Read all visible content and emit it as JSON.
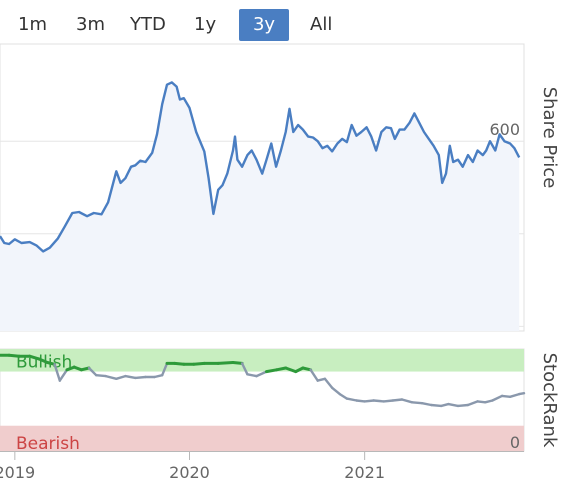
{
  "range_selector": {
    "buttons": [
      {
        "label": "1m",
        "active": false
      },
      {
        "label": "3m",
        "active": false
      },
      {
        "label": "YTD",
        "active": false
      },
      {
        "label": "1y",
        "active": false
      },
      {
        "label": "3y",
        "active": true
      },
      {
        "label": "All",
        "active": false
      }
    ]
  },
  "colors": {
    "price_line": "#4a7ec2",
    "price_area": "#f2f5fb",
    "bullish_zone": "#c8eec0",
    "bearish_zone": "#f0cdcd",
    "rank_bullish_line": "#2e9a3a",
    "rank_line": "#8a98ac",
    "bullish_text": "#2e9a3a",
    "bearish_text": "#cc4444"
  },
  "chart_data": [
    {
      "type": "area",
      "name": "share-price",
      "ylabel": "Share Price",
      "ylim": [
        190,
        810
      ],
      "yticks": [
        "200",
        "400",
        "600"
      ],
      "xlim": [
        "2018-12-01",
        "2021-11-30"
      ],
      "points": [
        [
          "2018-12-01",
          395
        ],
        [
          "2018-12-10",
          380
        ],
        [
          "2018-12-20",
          378
        ],
        [
          "2019-01-01",
          388
        ],
        [
          "2019-01-15",
          380
        ],
        [
          "2019-02-01",
          382
        ],
        [
          "2019-02-15",
          375
        ],
        [
          "2019-03-01",
          362
        ],
        [
          "2019-03-15",
          370
        ],
        [
          "2019-04-01",
          390
        ],
        [
          "2019-04-15",
          415
        ],
        [
          "2019-05-01",
          445
        ],
        [
          "2019-05-15",
          447
        ],
        [
          "2019-06-01",
          438
        ],
        [
          "2019-06-15",
          445
        ],
        [
          "2019-07-01",
          442
        ],
        [
          "2019-07-15",
          468
        ],
        [
          "2019-08-01",
          535
        ],
        [
          "2019-08-10",
          510
        ],
        [
          "2019-08-20",
          520
        ],
        [
          "2019-09-01",
          545
        ],
        [
          "2019-09-10",
          548
        ],
        [
          "2019-09-20",
          558
        ],
        [
          "2019-10-01",
          555
        ],
        [
          "2019-10-15",
          575
        ],
        [
          "2019-10-25",
          615
        ],
        [
          "2019-11-05",
          680
        ],
        [
          "2019-11-15",
          722
        ],
        [
          "2019-11-25",
          727
        ],
        [
          "2019-12-05",
          718
        ],
        [
          "2019-12-12",
          690
        ],
        [
          "2019-12-20",
          693
        ],
        [
          "2020-01-01",
          672
        ],
        [
          "2020-01-15",
          620
        ],
        [
          "2020-02-01",
          578
        ],
        [
          "2020-02-10",
          520
        ],
        [
          "2020-02-20",
          443
        ],
        [
          "2020-03-01",
          495
        ],
        [
          "2020-03-10",
          505
        ],
        [
          "2020-03-20",
          530
        ],
        [
          "2020-04-01",
          580
        ],
        [
          "2020-04-05",
          610
        ],
        [
          "2020-04-10",
          560
        ],
        [
          "2020-04-20",
          545
        ],
        [
          "2020-05-01",
          570
        ],
        [
          "2020-05-10",
          580
        ],
        [
          "2020-05-20",
          560
        ],
        [
          "2020-06-01",
          530
        ],
        [
          "2020-06-10",
          560
        ],
        [
          "2020-06-20",
          595
        ],
        [
          "2020-06-30",
          545
        ],
        [
          "2020-07-10",
          580
        ],
        [
          "2020-07-20",
          620
        ],
        [
          "2020-07-28",
          670
        ],
        [
          "2020-08-05",
          620
        ],
        [
          "2020-08-15",
          635
        ],
        [
          "2020-08-25",
          625
        ],
        [
          "2020-09-05",
          610
        ],
        [
          "2020-09-15",
          608
        ],
        [
          "2020-09-25",
          600
        ],
        [
          "2020-10-05",
          585
        ],
        [
          "2020-10-15",
          590
        ],
        [
          "2020-10-25",
          578
        ],
        [
          "2020-11-05",
          595
        ],
        [
          "2020-11-15",
          605
        ],
        [
          "2020-11-25",
          598
        ],
        [
          "2020-12-05",
          635
        ],
        [
          "2020-12-15",
          612
        ],
        [
          "2020-12-25",
          620
        ],
        [
          "2021-01-05",
          630
        ],
        [
          "2021-01-15",
          610
        ],
        [
          "2021-01-25",
          580
        ],
        [
          "2021-02-05",
          620
        ],
        [
          "2021-02-15",
          630
        ],
        [
          "2021-02-25",
          628
        ],
        [
          "2021-03-05",
          605
        ],
        [
          "2021-03-15",
          625
        ],
        [
          "2021-03-25",
          625
        ],
        [
          "2021-04-05",
          640
        ],
        [
          "2021-04-15",
          660
        ],
        [
          "2021-04-25",
          640
        ],
        [
          "2021-05-05",
          620
        ],
        [
          "2021-05-15",
          605
        ],
        [
          "2021-05-25",
          590
        ],
        [
          "2021-06-05",
          570
        ],
        [
          "2021-06-12",
          510
        ],
        [
          "2021-06-20",
          530
        ],
        [
          "2021-06-28",
          590
        ],
        [
          "2021-07-05",
          555
        ],
        [
          "2021-07-15",
          560
        ],
        [
          "2021-07-25",
          545
        ],
        [
          "2021-08-05",
          570
        ],
        [
          "2021-08-15",
          555
        ],
        [
          "2021-08-25",
          580
        ],
        [
          "2021-09-05",
          570
        ],
        [
          "2021-09-12",
          580
        ],
        [
          "2021-09-20",
          600
        ],
        [
          "2021-10-01",
          580
        ],
        [
          "2021-10-10",
          615
        ],
        [
          "2021-10-20",
          600
        ],
        [
          "2021-11-01",
          595
        ],
        [
          "2021-11-10",
          585
        ],
        [
          "2021-11-20",
          565
        ]
      ]
    },
    {
      "type": "line",
      "name": "stockrank",
      "ylabel": "StockRank",
      "ylim": [
        -8,
        105
      ],
      "zones": [
        {
          "label": "Bullish",
          "from": 80,
          "to": 105
        },
        {
          "label": "Bearish",
          "from": -8,
          "to": 20
        }
      ],
      "yticks": [
        "0"
      ],
      "xlim": [
        "2018-12-01",
        "2021-11-30"
      ],
      "xticks": [
        "2019",
        "2020",
        "2021"
      ],
      "points": [
        [
          "2018-12-01",
          98
        ],
        [
          "2018-12-20",
          98
        ],
        [
          "2019-01-10",
          97
        ],
        [
          "2019-02-01",
          97
        ],
        [
          "2019-02-20",
          94
        ],
        [
          "2019-03-10",
          90
        ],
        [
          "2019-03-25",
          88
        ],
        [
          "2019-04-05",
          70
        ],
        [
          "2019-04-20",
          82
        ],
        [
          "2019-05-05",
          85
        ],
        [
          "2019-05-20",
          82
        ],
        [
          "2019-06-05",
          84
        ],
        [
          "2019-06-20",
          76
        ],
        [
          "2019-07-10",
          75
        ],
        [
          "2019-08-01",
          72
        ],
        [
          "2019-08-20",
          75
        ],
        [
          "2019-09-10",
          73
        ],
        [
          "2019-10-01",
          74
        ],
        [
          "2019-10-20",
          74
        ],
        [
          "2019-11-05",
          76
        ],
        [
          "2019-11-15",
          89
        ],
        [
          "2019-12-01",
          89
        ],
        [
          "2019-12-20",
          88
        ],
        [
          "2020-01-10",
          88
        ],
        [
          "2020-02-01",
          89
        ],
        [
          "2020-03-01",
          89
        ],
        [
          "2020-04-01",
          90
        ],
        [
          "2020-04-20",
          89
        ],
        [
          "2020-05-01",
          77
        ],
        [
          "2020-05-20",
          75
        ],
        [
          "2020-06-10",
          80
        ],
        [
          "2020-07-01",
          82
        ],
        [
          "2020-07-20",
          84
        ],
        [
          "2020-08-10",
          80
        ],
        [
          "2020-08-25",
          84
        ],
        [
          "2020-09-10",
          82
        ],
        [
          "2020-09-25",
          70
        ],
        [
          "2020-10-10",
          72
        ],
        [
          "2020-10-25",
          62
        ],
        [
          "2020-11-10",
          55
        ],
        [
          "2020-11-25",
          50
        ],
        [
          "2020-12-15",
          48
        ],
        [
          "2021-01-01",
          47
        ],
        [
          "2021-01-20",
          48
        ],
        [
          "2021-02-10",
          47
        ],
        [
          "2021-03-01",
          48
        ],
        [
          "2021-03-20",
          49
        ],
        [
          "2021-04-10",
          46
        ],
        [
          "2021-05-01",
          45
        ],
        [
          "2021-05-20",
          43
        ],
        [
          "2021-06-10",
          42
        ],
        [
          "2021-06-25",
          44
        ],
        [
          "2021-07-15",
          42
        ],
        [
          "2021-08-05",
          43
        ],
        [
          "2021-08-25",
          47
        ],
        [
          "2021-09-10",
          46
        ],
        [
          "2021-09-25",
          48
        ],
        [
          "2021-10-15",
          53
        ],
        [
          "2021-11-01",
          52
        ],
        [
          "2021-11-20",
          55
        ],
        [
          "2021-11-30",
          56
        ]
      ]
    }
  ]
}
